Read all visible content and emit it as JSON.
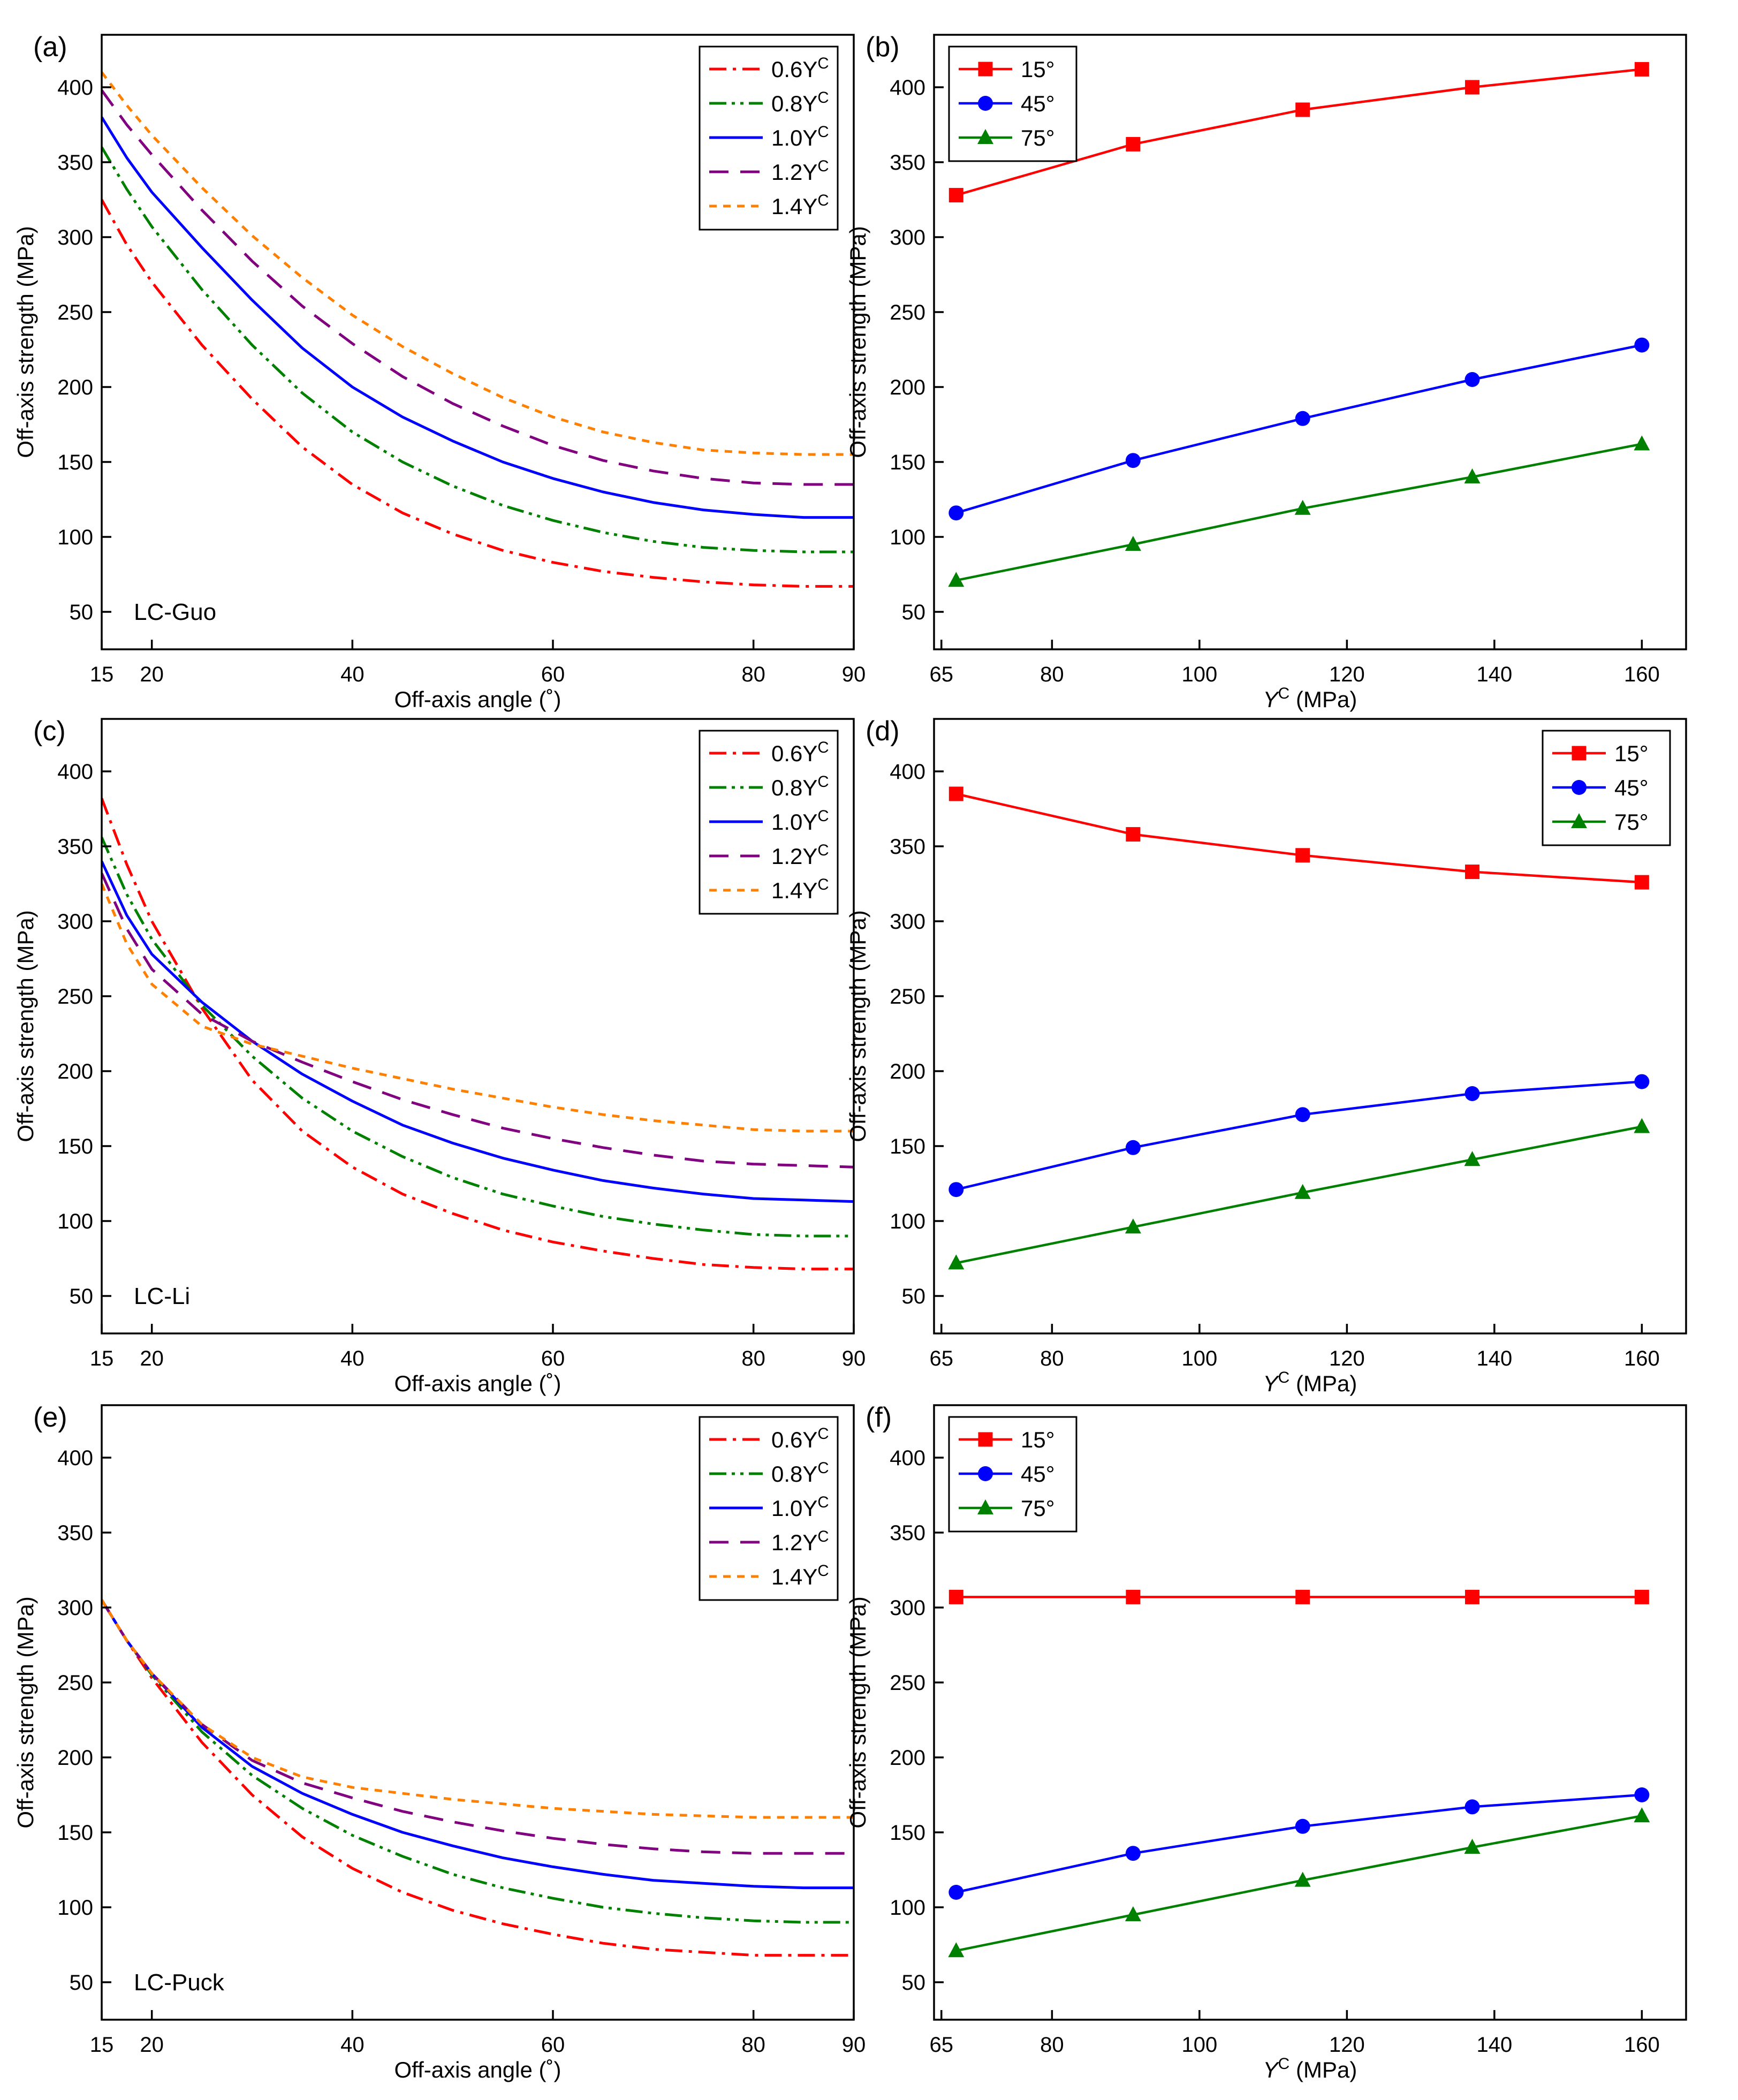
{
  "chart_data": [
    {
      "type": "line",
      "panel_label": "(a)",
      "annotation": "LC-Guo",
      "xlabel": "Off-axis angle (˚)",
      "ylabel": "Off-axis strength (MPa)",
      "xlim": [
        15,
        90
      ],
      "ylim": [
        25,
        435
      ],
      "xticks": [
        15,
        20,
        40,
        60,
        80,
        90
      ],
      "yticks": [
        50,
        100,
        150,
        200,
        250,
        300,
        350,
        400
      ],
      "legend_position": "top-right",
      "x": [
        15,
        17.5,
        20,
        25,
        30,
        35,
        40,
        45,
        50,
        55,
        60,
        65,
        70,
        75,
        80,
        85,
        90
      ],
      "series": [
        {
          "name": "0.6Y",
          "name_sup": "C",
          "color": "#ff0000",
          "dash": "dashdot",
          "values": [
            325,
            295,
            270,
            228,
            192,
            160,
            135,
            116,
            102,
            91,
            83,
            77,
            73,
            70,
            68,
            67,
            67
          ]
        },
        {
          "name": "0.8Y",
          "name_sup": "C",
          "color": "#008000",
          "dash": "dashdotdot",
          "values": [
            360,
            332,
            307,
            265,
            228,
            196,
            170,
            150,
            134,
            121,
            111,
            103,
            97,
            93,
            91,
            90,
            90
          ]
        },
        {
          "name": "1.0Y",
          "name_sup": "C",
          "color": "#0000ff",
          "dash": "solid",
          "values": [
            380,
            353,
            330,
            293,
            258,
            226,
            200,
            180,
            164,
            150,
            139,
            130,
            123,
            118,
            115,
            113,
            113
          ]
        },
        {
          "name": "1.2Y",
          "name_sup": "C",
          "color": "#800080",
          "dash": "dashed",
          "values": [
            398,
            375,
            355,
            318,
            284,
            254,
            229,
            207,
            189,
            174,
            161,
            151,
            144,
            139,
            136,
            135,
            135
          ]
        },
        {
          "name": "1.4Y",
          "name_sup": "C",
          "color": "#ff8000",
          "dash": "dotted",
          "values": [
            410,
            388,
            368,
            333,
            301,
            273,
            248,
            227,
            209,
            193,
            180,
            170,
            163,
            158,
            156,
            155,
            155
          ]
        }
      ]
    },
    {
      "type": "line",
      "panel_label": "(b)",
      "annotation": "",
      "xlabel": "Y",
      "xlabel_sup": "C",
      "xlabel_unit": " (MPa)",
      "ylabel": "Off-axis strength (MPa)",
      "xlim": [
        64,
        166
      ],
      "ylim": [
        25,
        435
      ],
      "xticks": [
        65,
        80,
        100,
        120,
        140,
        160
      ],
      "yticks": [
        50,
        100,
        150,
        200,
        250,
        300,
        350,
        400
      ],
      "legend_position": "top-left",
      "x": [
        67,
        91,
        114,
        137,
        160
      ],
      "series": [
        {
          "name": "15°",
          "color": "#ff0000",
          "marker": "square",
          "values": [
            328,
            362,
            385,
            400,
            412
          ]
        },
        {
          "name": "45°",
          "color": "#0000ff",
          "marker": "circle",
          "values": [
            116,
            151,
            179,
            205,
            228
          ]
        },
        {
          "name": "75°",
          "color": "#008000",
          "marker": "triangle",
          "values": [
            71,
            95,
            119,
            140,
            162
          ]
        }
      ]
    },
    {
      "type": "line",
      "panel_label": "(c)",
      "annotation": "LC-Li",
      "xlabel": "Off-axis angle (˚)",
      "ylabel": "Off-axis strength (MPa)",
      "xlim": [
        15,
        90
      ],
      "ylim": [
        25,
        435
      ],
      "xticks": [
        15,
        20,
        40,
        60,
        80,
        90
      ],
      "yticks": [
        50,
        100,
        150,
        200,
        250,
        300,
        350,
        400
      ],
      "legend_position": "top-right",
      "x": [
        15,
        17.5,
        20,
        25,
        30,
        35,
        40,
        45,
        50,
        55,
        60,
        65,
        70,
        75,
        80,
        85,
        90
      ],
      "series": [
        {
          "name": "0.6Y",
          "name_sup": "C",
          "color": "#ff0000",
          "dash": "dashdot",
          "values": [
            382,
            338,
            300,
            242,
            194,
            160,
            136,
            118,
            105,
            94,
            86,
            80,
            75,
            71,
            69,
            68,
            68
          ]
        },
        {
          "name": "0.8Y",
          "name_sup": "C",
          "color": "#008000",
          "dash": "dashdotdot",
          "values": [
            356,
            318,
            288,
            244,
            210,
            182,
            160,
            143,
            129,
            118,
            110,
            103,
            98,
            94,
            91,
            90,
            90
          ]
        },
        {
          "name": "1.0Y",
          "name_sup": "C",
          "color": "#0000ff",
          "dash": "solid",
          "values": [
            340,
            304,
            278,
            246,
            220,
            198,
            180,
            164,
            152,
            142,
            134,
            127,
            122,
            118,
            115,
            114,
            113
          ]
        },
        {
          "name": "1.2Y",
          "name_sup": "C",
          "color": "#800080",
          "dash": "dashed",
          "values": [
            332,
            295,
            268,
            238,
            220,
            206,
            193,
            181,
            171,
            162,
            155,
            149,
            144,
            140,
            138,
            137,
            136
          ]
        },
        {
          "name": "1.4Y",
          "name_sup": "C",
          "color": "#ff8000",
          "dash": "dotted",
          "values": [
            325,
            285,
            258,
            230,
            218,
            210,
            202,
            195,
            188,
            182,
            176,
            171,
            167,
            164,
            161,
            160,
            160
          ]
        }
      ]
    },
    {
      "type": "line",
      "panel_label": "(d)",
      "annotation": "",
      "xlabel": "Y",
      "xlabel_sup": "C",
      "xlabel_unit": " (MPa)",
      "ylabel": "Off-axis strength (MPa)",
      "xlim": [
        64,
        166
      ],
      "ylim": [
        25,
        435
      ],
      "xticks": [
        65,
        80,
        100,
        120,
        140,
        160
      ],
      "yticks": [
        50,
        100,
        150,
        200,
        250,
        300,
        350,
        400
      ],
      "legend_position": "top-right",
      "x": [
        67,
        91,
        114,
        137,
        160
      ],
      "series": [
        {
          "name": "15°",
          "color": "#ff0000",
          "marker": "square",
          "values": [
            385,
            358,
            344,
            333,
            326
          ]
        },
        {
          "name": "45°",
          "color": "#0000ff",
          "marker": "circle",
          "values": [
            121,
            149,
            171,
            185,
            193
          ]
        },
        {
          "name": "75°",
          "color": "#008000",
          "marker": "triangle",
          "values": [
            72,
            96,
            119,
            141,
            163
          ]
        }
      ]
    },
    {
      "type": "line",
      "panel_label": "(e)",
      "annotation": "LC-Puck",
      "xlabel": "Off-axis angle (˚)",
      "ylabel": "Off-axis strength (MPa)",
      "xlim": [
        15,
        90
      ],
      "ylim": [
        25,
        435
      ],
      "xticks": [
        15,
        20,
        40,
        60,
        80,
        90
      ],
      "yticks": [
        50,
        100,
        150,
        200,
        250,
        300,
        350,
        400
      ],
      "legend_position": "top-right",
      "x": [
        15,
        17.5,
        20,
        25,
        30,
        35,
        40,
        45,
        50,
        55,
        60,
        65,
        70,
        75,
        80,
        85,
        90
      ],
      "series": [
        {
          "name": "0.6Y",
          "name_sup": "C",
          "color": "#ff0000",
          "dash": "dashdot",
          "values": [
            305,
            278,
            253,
            210,
            175,
            147,
            126,
            110,
            98,
            89,
            82,
            76,
            72,
            70,
            68,
            68,
            68
          ]
        },
        {
          "name": "0.8Y",
          "name_sup": "C",
          "color": "#008000",
          "dash": "dashdotdot",
          "values": [
            305,
            278,
            255,
            217,
            188,
            166,
            148,
            134,
            122,
            113,
            106,
            100,
            96,
            93,
            91,
            90,
            90
          ]
        },
        {
          "name": "1.0Y",
          "name_sup": "C",
          "color": "#0000ff",
          "dash": "solid",
          "values": [
            305,
            278,
            256,
            220,
            194,
            176,
            162,
            150,
            141,
            133,
            127,
            122,
            118,
            116,
            114,
            113,
            113
          ]
        },
        {
          "name": "1.2Y",
          "name_sup": "C",
          "color": "#800080",
          "dash": "dashed",
          "values": [
            305,
            278,
            256,
            222,
            198,
            183,
            173,
            164,
            157,
            151,
            146,
            142,
            139,
            137,
            136,
            136,
            136
          ]
        },
        {
          "name": "1.4Y",
          "name_sup": "C",
          "color": "#ff8000",
          "dash": "dotted",
          "values": [
            305,
            278,
            256,
            222,
            200,
            187,
            180,
            176,
            172,
            169,
            166,
            164,
            162,
            161,
            160,
            160,
            160
          ]
        }
      ]
    },
    {
      "type": "line",
      "panel_label": "(f)",
      "annotation": "",
      "xlabel": "Y",
      "xlabel_sup": "C",
      "xlabel_unit": " (MPa)",
      "ylabel": "Off-axis strength (MPa)",
      "xlim": [
        64,
        166
      ],
      "ylim": [
        25,
        435
      ],
      "xticks": [
        65,
        80,
        100,
        120,
        140,
        160
      ],
      "yticks": [
        50,
        100,
        150,
        200,
        250,
        300,
        350,
        400
      ],
      "legend_position": "top-left",
      "x": [
        67,
        91,
        114,
        137,
        160
      ],
      "series": [
        {
          "name": "15°",
          "color": "#ff0000",
          "marker": "square",
          "values": [
            307,
            307,
            307,
            307,
            307
          ]
        },
        {
          "name": "45°",
          "color": "#0000ff",
          "marker": "circle",
          "values": [
            110,
            136,
            154,
            167,
            175
          ]
        },
        {
          "name": "75°",
          "color": "#008000",
          "marker": "triangle",
          "values": [
            71,
            95,
            118,
            140,
            161
          ]
        }
      ]
    }
  ]
}
